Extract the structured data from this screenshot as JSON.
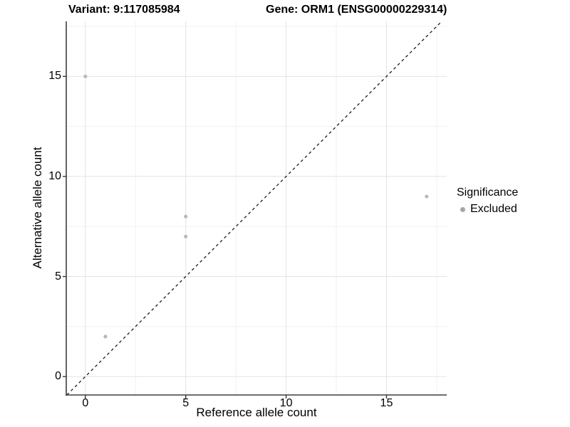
{
  "chart_data": {
    "type": "scatter",
    "title_parts": [
      "Variant: 9:117085984",
      "Gene: ORM1 (ENSG00000229314)"
    ],
    "xlabel": "Reference allele count",
    "ylabel": "Alternative allele count",
    "xlim": [
      -0.95,
      18.0
    ],
    "ylim": [
      -0.92,
      17.75
    ],
    "xticks": [
      0,
      5,
      10,
      15
    ],
    "yticks": [
      0,
      5,
      10,
      15
    ],
    "x_minor_ticks": [
      2.5,
      7.5,
      12.5,
      17.5
    ],
    "y_minor_ticks": [
      2.5,
      7.5,
      12.5,
      17.5
    ],
    "grid": "major and minor, light gray on white",
    "identity_line": {
      "style": "dashed",
      "equation": "y = x"
    },
    "series": [
      {
        "name": "Excluded",
        "points": [
          [
            0,
            15
          ],
          [
            1,
            2
          ],
          [
            5,
            7
          ],
          [
            5,
            8
          ],
          [
            17,
            9
          ]
        ]
      }
    ],
    "legend": {
      "title": "Significance",
      "position": "right",
      "items": [
        {
          "label": "Excluded"
        }
      ]
    }
  },
  "colors": {
    "point": "#b9b9b9",
    "legend_point": "#a6a6a6",
    "grid_major": "#e3e3e3",
    "grid_minor": "#f1f1f1",
    "axis_line": "#3d3d3d",
    "tick_mark": "#333333",
    "dashed_line": "#1a1a1a",
    "text": "#000000",
    "background": "#ffffff"
  }
}
